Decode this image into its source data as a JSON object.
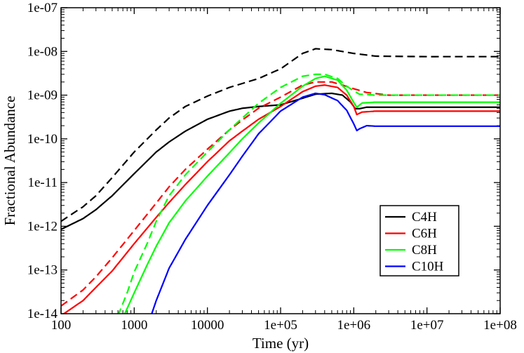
{
  "chart_data": {
    "type": "line",
    "title": "",
    "xlabel": "Time (yr)",
    "ylabel": "Fractional Abundance",
    "xscale": "log",
    "yscale": "log",
    "xlim": [
      100,
      100000000
    ],
    "ylim": [
      1e-14,
      1e-07
    ],
    "xticks": [
      {
        "value": 100,
        "label": "100"
      },
      {
        "value": 1000,
        "label": "1000"
      },
      {
        "value": 10000,
        "label": "10000"
      },
      {
        "value": 100000,
        "label": "1e+05"
      },
      {
        "value": 1000000,
        "label": "1e+06"
      },
      {
        "value": 10000000,
        "label": "1e+07"
      },
      {
        "value": 100000000,
        "label": "1e+08"
      }
    ],
    "yticks": [
      {
        "value": 1e-14,
        "label": "1e-14"
      },
      {
        "value": 1e-13,
        "label": "1e-13"
      },
      {
        "value": 1e-12,
        "label": "1e-12"
      },
      {
        "value": 1e-11,
        "label": "1e-11"
      },
      {
        "value": 1e-10,
        "label": "1e-10"
      },
      {
        "value": 1e-09,
        "label": "1e-09"
      },
      {
        "value": 1e-08,
        "label": "1e-08"
      },
      {
        "value": 1e-07,
        "label": "1e-07"
      }
    ],
    "legend_position": "bottom-right",
    "series": [
      {
        "name": "C4H",
        "color": "#000000",
        "dash": false,
        "in_legend": true,
        "points": [
          [
            100,
            8.5e-13
          ],
          [
            200,
            1.5e-12
          ],
          [
            300,
            2.4e-12
          ],
          [
            500,
            5e-12
          ],
          [
            1000,
            1.6e-11
          ],
          [
            2000,
            5e-11
          ],
          [
            3000,
            8.5e-11
          ],
          [
            5000,
            1.5e-10
          ],
          [
            10000,
            2.8e-10
          ],
          [
            20000,
            4.3e-10
          ],
          [
            30000,
            5e-10
          ],
          [
            50000,
            5.5e-10
          ],
          [
            100000,
            6e-10
          ],
          [
            200000,
            8.5e-10
          ],
          [
            300000,
            1.05e-09
          ],
          [
            500000,
            1.1e-09
          ],
          [
            700000,
            1e-09
          ],
          [
            900000,
            7e-10
          ],
          [
            1050000,
            4.9e-10
          ],
          [
            1200000,
            4.9e-10
          ],
          [
            1500000,
            5.3e-10
          ],
          [
            3000000,
            5.3e-10
          ],
          [
            10000000,
            5.3e-10
          ],
          [
            100000000,
            5.3e-10
          ]
        ]
      },
      {
        "name": "C4H (dashed)",
        "color": "#000000",
        "dash": true,
        "in_legend": false,
        "points": [
          [
            100,
            1.3e-12
          ],
          [
            200,
            2.8e-12
          ],
          [
            300,
            5e-12
          ],
          [
            500,
            1.3e-11
          ],
          [
            1000,
            5e-11
          ],
          [
            2000,
            1.6e-10
          ],
          [
            3000,
            3e-10
          ],
          [
            5000,
            5.5e-10
          ],
          [
            10000,
            9.5e-10
          ],
          [
            20000,
            1.5e-09
          ],
          [
            50000,
            2.4e-09
          ],
          [
            100000,
            4e-09
          ],
          [
            200000,
            9e-09
          ],
          [
            300000,
            1.15e-08
          ],
          [
            500000,
            1.1e-08
          ],
          [
            1000000,
            9e-09
          ],
          [
            2000000,
            7.8e-09
          ],
          [
            10000000,
            7.6e-09
          ],
          [
            100000000,
            7.6e-09
          ]
        ]
      },
      {
        "name": "C6H",
        "color": "#ff0000",
        "dash": false,
        "in_legend": true,
        "points": [
          [
            100,
            9e-15
          ],
          [
            200,
            2e-14
          ],
          [
            300,
            4e-14
          ],
          [
            500,
            9.5e-14
          ],
          [
            1000,
            4e-13
          ],
          [
            2000,
            1.6e-12
          ],
          [
            3000,
            3.5e-12
          ],
          [
            5000,
            9e-12
          ],
          [
            10000,
            3e-11
          ],
          [
            20000,
            9e-11
          ],
          [
            30000,
            1.5e-10
          ],
          [
            50000,
            2.8e-10
          ],
          [
            100000,
            5.5e-10
          ],
          [
            200000,
            1.2e-09
          ],
          [
            300000,
            1.6e-09
          ],
          [
            400000,
            1.7e-09
          ],
          [
            600000,
            1.5e-09
          ],
          [
            800000,
            1e-09
          ],
          [
            1000000,
            5.5e-10
          ],
          [
            1100000,
            3.6e-10
          ],
          [
            1300000,
            4.1e-10
          ],
          [
            2000000,
            4.3e-10
          ],
          [
            100000000,
            4.3e-10
          ]
        ]
      },
      {
        "name": "C6H (dashed)",
        "color": "#ff0000",
        "dash": true,
        "in_legend": false,
        "points": [
          [
            100,
            1.5e-14
          ],
          [
            200,
            3.5e-14
          ],
          [
            300,
            7e-14
          ],
          [
            500,
            1.9e-13
          ],
          [
            1000,
            8e-13
          ],
          [
            2000,
            3.4e-12
          ],
          [
            3000,
            8e-12
          ],
          [
            5000,
            2e-11
          ],
          [
            10000,
            5.8e-11
          ],
          [
            20000,
            1.6e-10
          ],
          [
            30000,
            2.7e-10
          ],
          [
            50000,
            5e-10
          ],
          [
            100000,
            9e-10
          ],
          [
            200000,
            1.7e-09
          ],
          [
            300000,
            2e-09
          ],
          [
            500000,
            2e-09
          ],
          [
            700000,
            1.7e-09
          ],
          [
            1000000,
            1.4e-09
          ],
          [
            1500000,
            1.15e-09
          ],
          [
            3000000,
            1e-09
          ],
          [
            100000000,
            1e-09
          ]
        ]
      },
      {
        "name": "C8H",
        "color": "#00ff00",
        "dash": false,
        "in_legend": true,
        "points": [
          [
            700,
            8e-15
          ],
          [
            1000,
            3e-14
          ],
          [
            1500,
            1.3e-13
          ],
          [
            2000,
            3.5e-13
          ],
          [
            3000,
            1.2e-12
          ],
          [
            5000,
            3.8e-12
          ],
          [
            10000,
            1.4e-11
          ],
          [
            20000,
            4.8e-11
          ],
          [
            30000,
            1e-10
          ],
          [
            50000,
            2.3e-10
          ],
          [
            100000,
            6.5e-10
          ],
          [
            200000,
            1.6e-09
          ],
          [
            300000,
            2.4e-09
          ],
          [
            400000,
            2.7e-09
          ],
          [
            600000,
            2.2e-09
          ],
          [
            800000,
            1.3e-09
          ],
          [
            1000000,
            6.8e-10
          ],
          [
            1100000,
            5.3e-10
          ],
          [
            1300000,
            6.6e-10
          ],
          [
            2000000,
            6.9e-10
          ],
          [
            100000000,
            6.9e-10
          ]
        ]
      },
      {
        "name": "C8H (dashed)",
        "color": "#00ff00",
        "dash": true,
        "in_legend": false,
        "points": [
          [
            600,
            9e-15
          ],
          [
            800,
            3e-14
          ],
          [
            1000,
            9e-14
          ],
          [
            1500,
            4e-13
          ],
          [
            2000,
            1.3e-12
          ],
          [
            3000,
            5e-12
          ],
          [
            5000,
            1.5e-11
          ],
          [
            10000,
            5e-11
          ],
          [
            20000,
            1.6e-10
          ],
          [
            30000,
            3e-10
          ],
          [
            50000,
            6.5e-10
          ],
          [
            100000,
            1.5e-09
          ],
          [
            200000,
            2.7e-09
          ],
          [
            300000,
            3e-09
          ],
          [
            400000,
            3e-09
          ],
          [
            600000,
            2.4e-09
          ],
          [
            800000,
            1.6e-09
          ],
          [
            1000000,
            1.25e-09
          ],
          [
            1200000,
            1.05e-09
          ],
          [
            2000000,
            1e-09
          ],
          [
            100000000,
            1e-09
          ]
        ]
      },
      {
        "name": "C10H",
        "color": "#0000ff",
        "dash": false,
        "in_legend": true,
        "points": [
          [
            1700,
            9e-15
          ],
          [
            2000,
            2e-14
          ],
          [
            3000,
            1.1e-13
          ],
          [
            5000,
            5e-13
          ],
          [
            10000,
            3e-12
          ],
          [
            20000,
            1.5e-11
          ],
          [
            30000,
            4e-11
          ],
          [
            50000,
            1.3e-10
          ],
          [
            100000,
            4.3e-10
          ],
          [
            200000,
            9e-10
          ],
          [
            300000,
            1.1e-09
          ],
          [
            400000,
            1.02e-09
          ],
          [
            600000,
            7.5e-10
          ],
          [
            800000,
            4.5e-10
          ],
          [
            1000000,
            2.2e-10
          ],
          [
            1100000,
            1.55e-10
          ],
          [
            1200000,
            1.7e-10
          ],
          [
            1500000,
            2e-10
          ],
          [
            2000000,
            1.95e-10
          ],
          [
            100000000,
            1.95e-10
          ]
        ]
      }
    ]
  }
}
